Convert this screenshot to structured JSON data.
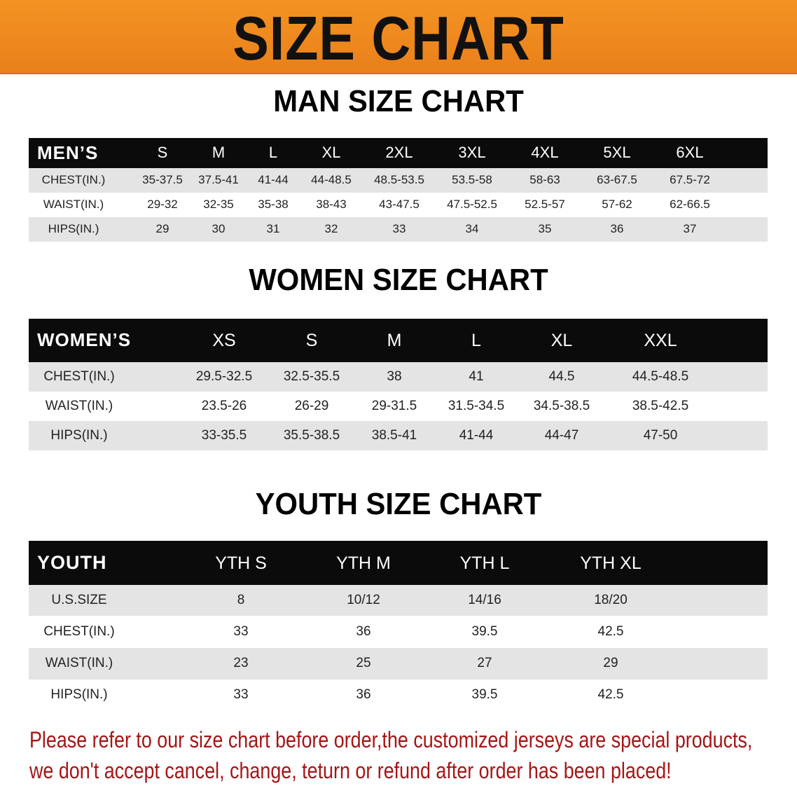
{
  "banner": {
    "title": "SIZE CHART",
    "color": "#f08a1c"
  },
  "men": {
    "title": "MAN SIZE CHART",
    "header": [
      "MEN’S",
      "S",
      "M",
      "L",
      "XL",
      "2XL",
      "3XL",
      "4XL",
      "5XL",
      "6XL"
    ],
    "rows": [
      [
        "CHEST(IN.)",
        "35-37.5",
        "37.5-41",
        "41-44",
        "44-48.5",
        "48.5-53.5",
        "53.5-58",
        "58-63",
        "63-67.5",
        "67.5-72"
      ],
      [
        "WAIST(IN.)",
        "29-32",
        "32-35",
        "35-38",
        "38-43",
        "43-47.5",
        "47.5-52.5",
        "52.5-57",
        "57-62",
        "62-66.5"
      ],
      [
        "HIPS(IN.)",
        "29",
        "30",
        "31",
        "32",
        "33",
        "34",
        "35",
        "36",
        "37"
      ]
    ]
  },
  "women": {
    "title": "WOMEN SIZE CHART",
    "header": [
      "WOMEN’S",
      "XS",
      "S",
      "M",
      "L",
      "XL",
      "XXL"
    ],
    "rows": [
      [
        "CHEST(IN.)",
        "29.5-32.5",
        "32.5-35.5",
        "38",
        "41",
        "44.5",
        "44.5-48.5"
      ],
      [
        "WAIST(IN.)",
        "23.5-26",
        "26-29",
        "29-31.5",
        "31.5-34.5",
        "34.5-38.5",
        "38.5-42.5"
      ],
      [
        "HIPS(IN.)",
        "33-35.5",
        "35.5-38.5",
        "38.5-41",
        "41-44",
        "44-47",
        "47-50"
      ]
    ]
  },
  "youth": {
    "title": "YOUTH SIZE CHART",
    "header": [
      "YOUTH",
      "YTH S",
      "YTH M",
      "YTH L",
      "YTH XL"
    ],
    "rows": [
      [
        "U.S.SIZE",
        "8",
        "10/12",
        "14/16",
        "18/20"
      ],
      [
        "CHEST(IN.)",
        "33",
        "36",
        "39.5",
        "42.5"
      ],
      [
        "WAIST(IN.)",
        "23",
        "25",
        "27",
        "29"
      ],
      [
        "HIPS(IN.)",
        "33",
        "36",
        "39.5",
        "42.5"
      ]
    ]
  },
  "notice": {
    "line1": "Please refer to our size chart before order,the customized jerseys are special products,",
    "line2": "we don't accept cancel, change, teturn or refund after order has been placed!",
    "color": "#a51616"
  }
}
